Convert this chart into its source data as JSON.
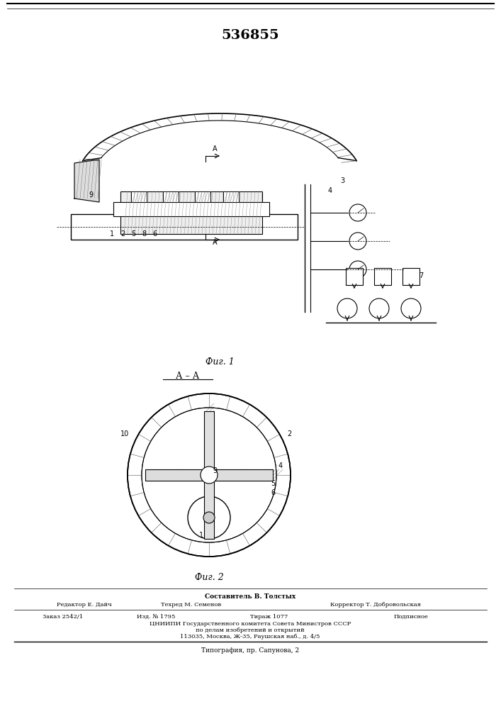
{
  "patent_number": "536855",
  "fig1_caption": "Фиг. 1",
  "fig2_caption": "Фиг. 2",
  "section_label": "А – А",
  "footer_composer": "Составитель В. Толстых",
  "footer_editor": "Редактор Е. Дайч",
  "footer_techred": "Техред М. Семенов",
  "footer_corrector": "Корректор Т. Добровольская",
  "footer_order": "Заказ 2542/1",
  "footer_izd": "Изд. № 1795",
  "footer_tirazh": "Тираж 1077",
  "footer_podp": "Подписное",
  "footer_org": "ЦНИИПИ Государственного комитета Совета Министров СССР",
  "footer_org2": "по делам изобретений и открытий",
  "footer_addr": "113035, Москва, Ж-35, Раушская наб., д. 4/5",
  "footer_print": "Типография, пр. Сапунова, 2",
  "bg_color": "#ffffff",
  "line_color": "#000000",
  "hatch_color": "#000000"
}
